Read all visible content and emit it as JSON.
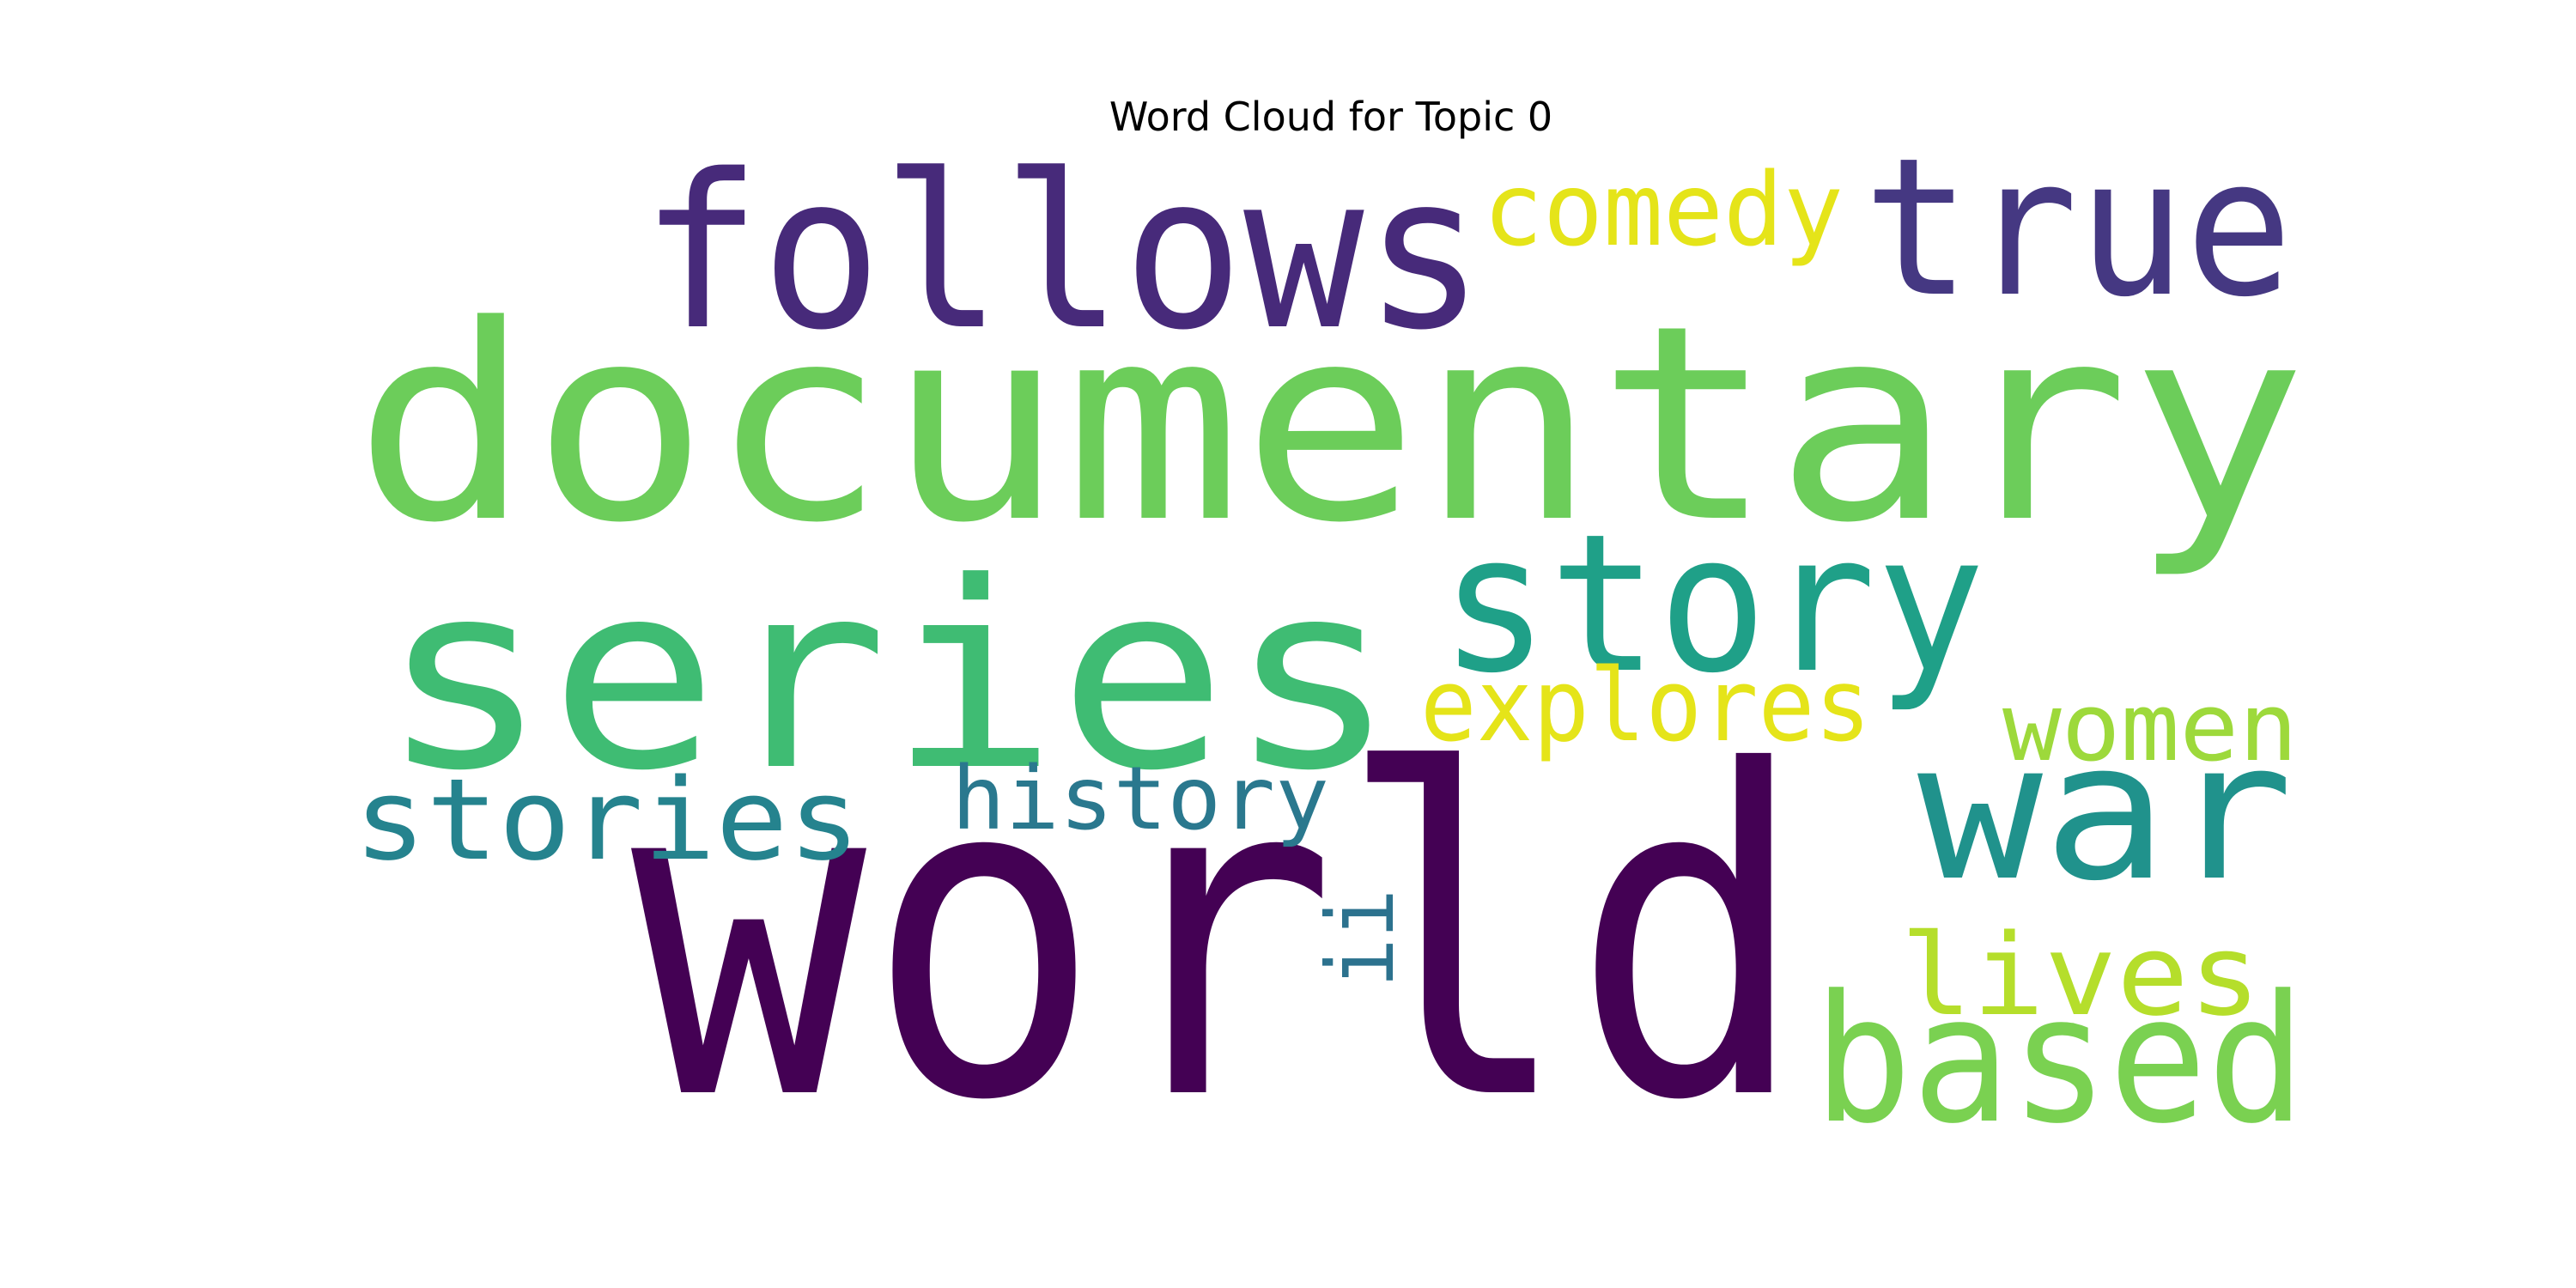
{
  "chart_data": {
    "type": "wordcloud",
    "title": "Word Cloud for Topic 0",
    "background": "#ffffff",
    "words": [
      {
        "text": "world",
        "weight": 1.0,
        "color": "#440154"
      },
      {
        "text": "documentary",
        "weight": 0.98,
        "color": "#6ccd5a"
      },
      {
        "text": "series",
        "weight": 0.82,
        "color": "#3fbc73"
      },
      {
        "text": "follows",
        "weight": 0.56,
        "color": "#472a7a"
      },
      {
        "text": "true",
        "weight": 0.5,
        "color": "#453882"
      },
      {
        "text": "story",
        "weight": 0.47,
        "color": "#1fa088"
      },
      {
        "text": "war",
        "weight": 0.46,
        "color": "#20928c"
      },
      {
        "text": "based",
        "weight": 0.44,
        "color": "#7ad151"
      },
      {
        "text": "stories",
        "weight": 0.32,
        "color": "#25838e"
      },
      {
        "text": "lives",
        "weight": 0.31,
        "color": "#b5de2b"
      },
      {
        "text": "comedy",
        "weight": 0.28,
        "color": "#e5e419"
      },
      {
        "text": "explores",
        "weight": 0.28,
        "color": "#e5e419"
      },
      {
        "text": "women",
        "weight": 0.26,
        "color": "#9dd93b"
      },
      {
        "text": "history",
        "weight": 0.25,
        "color": "#2a788e"
      },
      {
        "text": "ii",
        "weight": 0.21,
        "color": "#2c728e"
      }
    ]
  }
}
